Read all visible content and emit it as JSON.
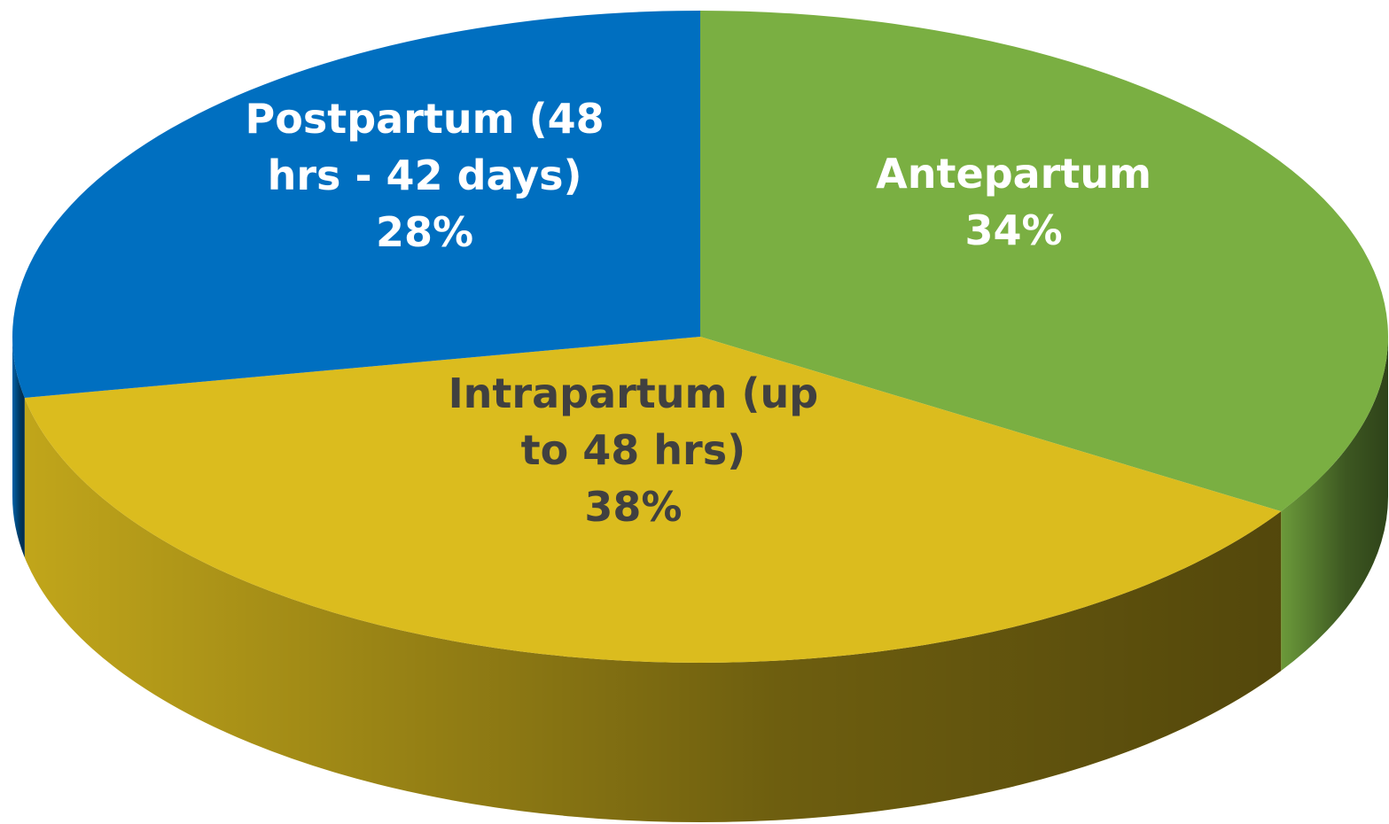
{
  "chart_data": {
    "type": "pie",
    "categories": [
      "Antepartum",
      "Intrapartum (up to 48 hrs)",
      "Postpartum (48 hrs - 42 days)"
    ],
    "values": [
      34,
      38,
      28
    ],
    "value_labels": [
      "34%",
      "38%",
      "28%"
    ],
    "colors": [
      "#7aaf42",
      "#dbbc1e",
      "#006fc0"
    ],
    "label_colors": [
      "#ffffff",
      "#404040",
      "#ffffff"
    ]
  }
}
